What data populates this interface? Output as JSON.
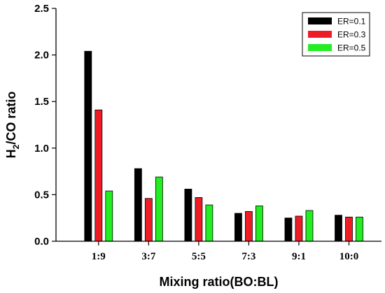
{
  "chart_data": {
    "type": "bar",
    "categories": [
      "1:9",
      "3:7",
      "5:5",
      "7:3",
      "9:1",
      "10:0"
    ],
    "series": [
      {
        "name": "ER=0.1",
        "color": "#000000",
        "values": [
          2.04,
          0.78,
          0.56,
          0.3,
          0.25,
          0.28
        ]
      },
      {
        "name": "ER=0.3",
        "color": "#ee1c25",
        "values": [
          1.41,
          0.46,
          0.47,
          0.32,
          0.27,
          0.26
        ]
      },
      {
        "name": "ER=0.5",
        "color": "#22ee22",
        "values": [
          0.54,
          0.69,
          0.39,
          0.38,
          0.33,
          0.26
        ]
      }
    ],
    "title": "",
    "xlabel": "Mixing ratio(BO:BL)",
    "ylabel_main": "H",
    "ylabel_sub": "2",
    "ylabel_rest": "/CO ratio",
    "ylim": [
      0,
      2.5
    ],
    "yticks": [
      "0.0",
      "0.5",
      "1.0",
      "1.5",
      "2.0",
      "2.5"
    ],
    "legend_position": "top-right",
    "grid": false
  }
}
